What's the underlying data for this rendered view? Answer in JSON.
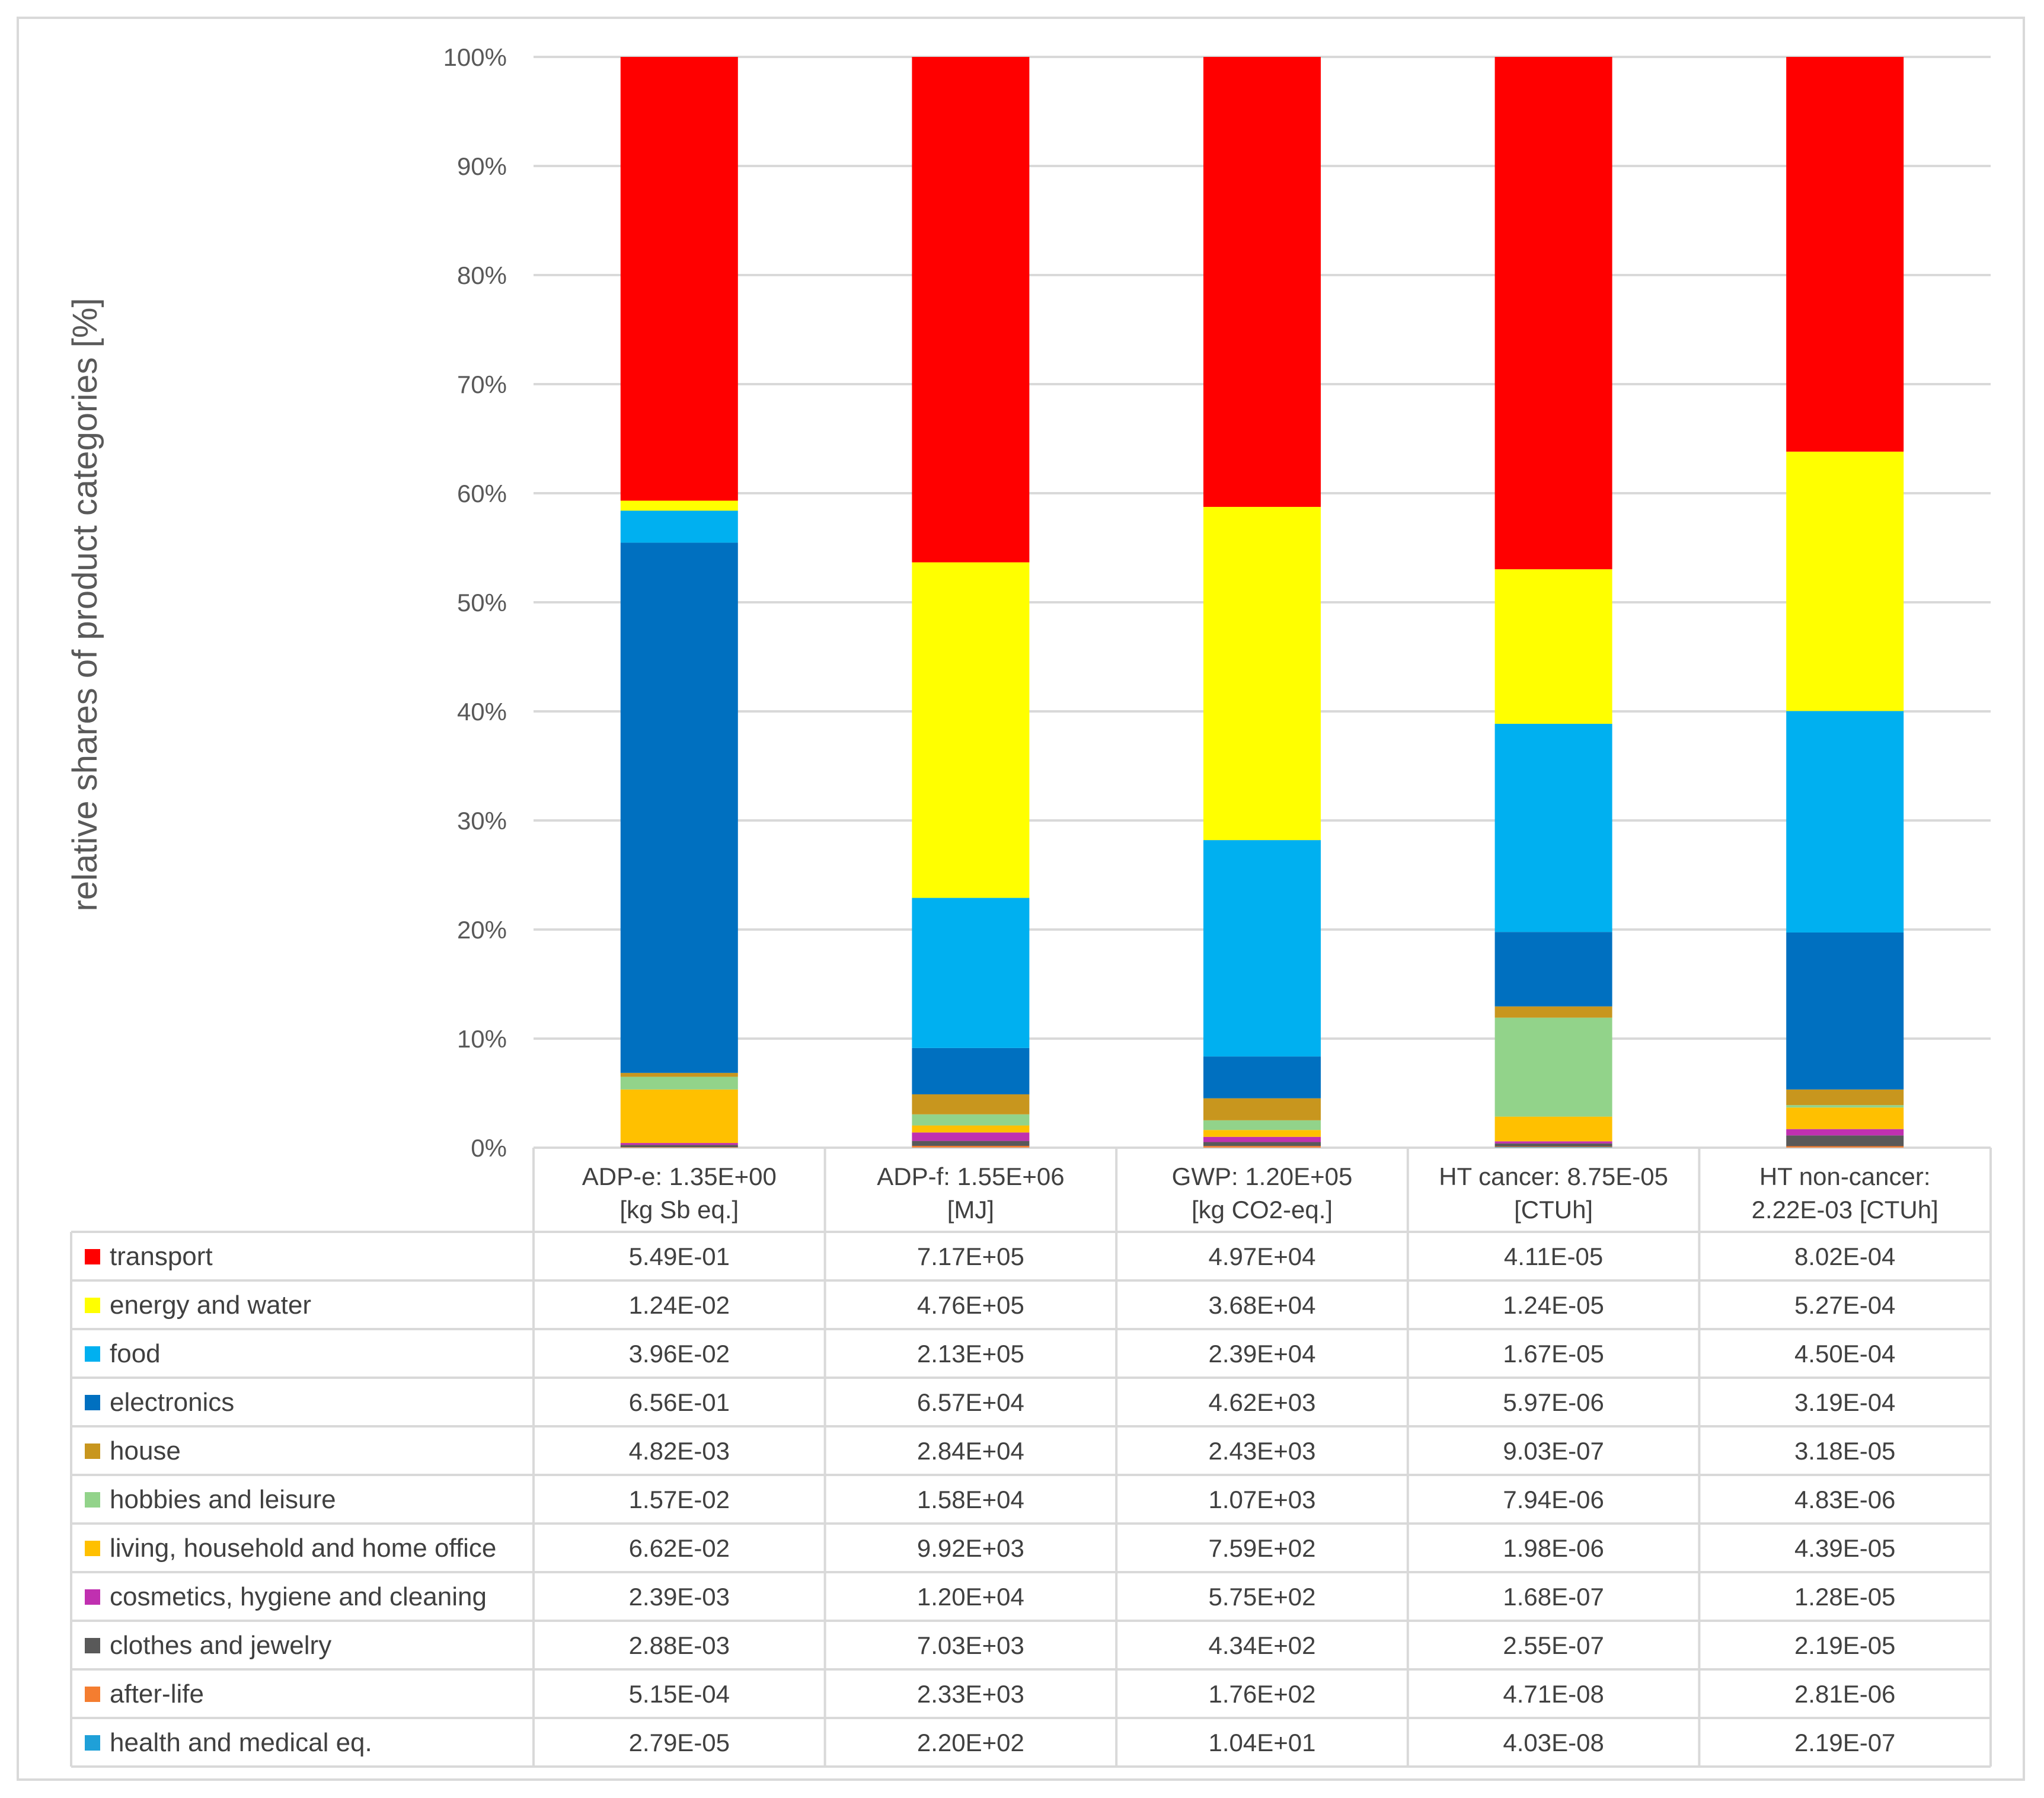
{
  "chart_data": {
    "type": "bar",
    "stacked": true,
    "normalized": true,
    "ylabel": "relative shares of product categories [%]",
    "ylim": [
      0,
      100
    ],
    "yticks": [
      "0%",
      "10%",
      "20%",
      "30%",
      "40%",
      "50%",
      "60%",
      "70%",
      "80%",
      "90%",
      "100%"
    ],
    "categories": [
      [
        "ADP-e: 1.35E+00",
        "[kg Sb eq.]"
      ],
      [
        "ADP-f: 1.55E+06",
        "[MJ]"
      ],
      [
        "GWP: 1.20E+05",
        "[kg CO2-eq.]"
      ],
      [
        "HT cancer: 8.75E-05",
        "[CTUh]"
      ],
      [
        "HT non-cancer:",
        "2.22E-03 [CTUh]"
      ]
    ],
    "series": [
      {
        "name": "transport",
        "color": "#ff0000",
        "labels": [
          "5.49E-01",
          "7.17E+05",
          "4.97E+04",
          "4.11E-05",
          "8.02E-04"
        ],
        "values": [
          0.549,
          717000,
          49700,
          4.11e-05,
          0.000802
        ]
      },
      {
        "name": "energy and water",
        "color": "#ffff00",
        "labels": [
          "1.24E-02",
          "4.76E+05",
          "3.68E+04",
          "1.24E-05",
          "5.27E-04"
        ],
        "values": [
          0.0124,
          476000,
          36800,
          1.24e-05,
          0.000527
        ]
      },
      {
        "name": "food",
        "color": "#00b0f0",
        "labels": [
          "3.96E-02",
          "2.13E+05",
          "2.39E+04",
          "1.67E-05",
          "4.50E-04"
        ],
        "values": [
          0.0396,
          213000,
          23900,
          1.67e-05,
          0.00045
        ]
      },
      {
        "name": "electronics",
        "color": "#0070c0",
        "labels": [
          "6.56E-01",
          "6.57E+04",
          "4.62E+03",
          "5.97E-06",
          "3.19E-04"
        ],
        "values": [
          0.656,
          65700,
          4620,
          5.97e-06,
          0.000319
        ]
      },
      {
        "name": "house",
        "color": "#c8961e",
        "labels": [
          "4.82E-03",
          "2.84E+04",
          "2.43E+03",
          "9.03E-07",
          "3.18E-05"
        ],
        "values": [
          0.00482,
          28400,
          2430,
          9.03e-07,
          3.18e-05
        ]
      },
      {
        "name": "hobbies and leisure",
        "color": "#92d38a",
        "labels": [
          "1.57E-02",
          "1.58E+04",
          "1.07E+03",
          "7.94E-06",
          "4.83E-06"
        ],
        "values": [
          0.0157,
          15800,
          1070,
          7.94e-06,
          4.83e-06
        ]
      },
      {
        "name": "living, household and home office",
        "color": "#ffc000",
        "labels": [
          "6.62E-02",
          "9.92E+03",
          "7.59E+02",
          "1.98E-06",
          "4.39E-05"
        ],
        "values": [
          0.0662,
          9920,
          759,
          1.98e-06,
          4.39e-05
        ]
      },
      {
        "name": "cosmetics, hygiene and cleaning",
        "color": "#c030b0",
        "labels": [
          "2.39E-03",
          "1.20E+04",
          "5.75E+02",
          "1.68E-07",
          "1.28E-05"
        ],
        "values": [
          0.00239,
          12000,
          575,
          1.68e-07,
          1.28e-05
        ]
      },
      {
        "name": "clothes and jewelry",
        "color": "#595959",
        "labels": [
          "2.88E-03",
          "7.03E+03",
          "4.34E+02",
          "2.55E-07",
          "2.19E-05"
        ],
        "values": [
          0.00288,
          7030,
          434,
          2.55e-07,
          2.19e-05
        ]
      },
      {
        "name": "after-life",
        "color": "#f47d30",
        "labels": [
          "5.15E-04",
          "2.33E+03",
          "1.76E+02",
          "4.71E-08",
          "2.81E-06"
        ],
        "values": [
          0.000515,
          2330,
          176,
          4.71e-08,
          2.81e-06
        ]
      },
      {
        "name": "health and medical eq.",
        "color": "#1fa0d8",
        "labels": [
          "2.79E-05",
          "2.20E+02",
          "1.04E+01",
          "4.03E-08",
          "2.19E-07"
        ],
        "values": [
          2.79e-05,
          220,
          10.4,
          4.03e-08,
          2.19e-07
        ]
      }
    ]
  }
}
